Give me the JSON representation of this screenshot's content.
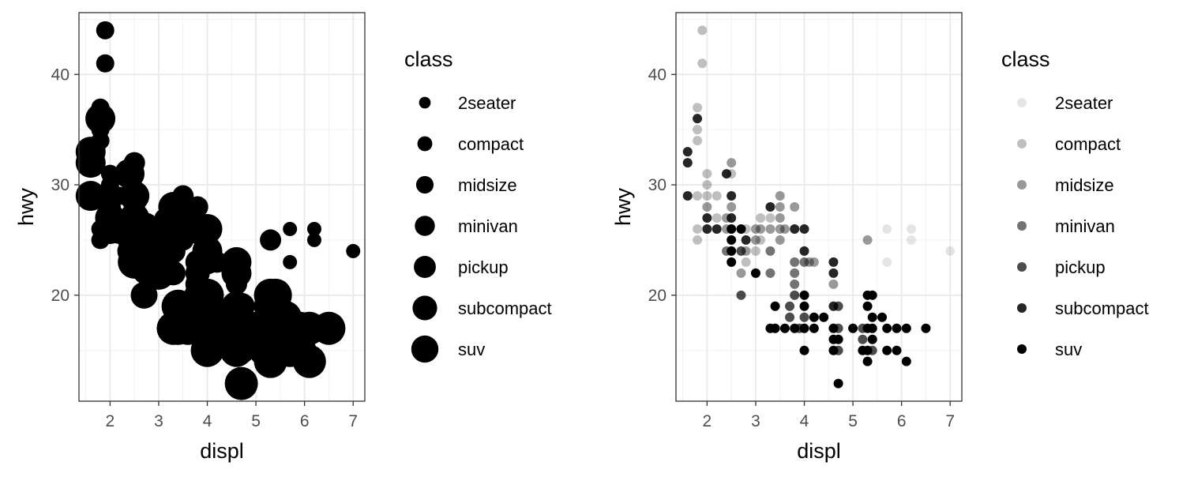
{
  "chart_data": [
    {
      "type": "scatter",
      "xlabel": "displ",
      "ylabel": "hwy",
      "xlim": [
        1.36,
        7.24
      ],
      "ylim": [
        10.4,
        45.6
      ],
      "x_ticks": [
        2,
        3,
        4,
        5,
        6,
        7
      ],
      "y_ticks": [
        20,
        30,
        40
      ],
      "grid": true,
      "legend": {
        "title": "class",
        "placement": "right",
        "encoding": "size",
        "entries": [
          "2seater",
          "compact",
          "midsize",
          "minivan",
          "pickup",
          "subcompact",
          "suv"
        ]
      },
      "points": [
        {
          "x": 1.6,
          "y": 33,
          "class": "subcompact"
        },
        {
          "x": 1.6,
          "y": 32,
          "class": "subcompact"
        },
        {
          "x": 1.6,
          "y": 29,
          "class": "subcompact"
        },
        {
          "x": 1.8,
          "y": 29,
          "class": "compact"
        },
        {
          "x": 1.8,
          "y": 26,
          "class": "compact"
        },
        {
          "x": 1.8,
          "y": 25,
          "class": "compact"
        },
        {
          "x": 1.8,
          "y": 37,
          "class": "compact"
        },
        {
          "x": 1.8,
          "y": 35,
          "class": "compact"
        },
        {
          "x": 1.8,
          "y": 36,
          "class": "subcompact"
        },
        {
          "x": 1.8,
          "y": 34,
          "class": "compact"
        },
        {
          "x": 1.9,
          "y": 44,
          "class": "compact"
        },
        {
          "x": 1.9,
          "y": 41,
          "class": "compact"
        },
        {
          "x": 2.0,
          "y": 31,
          "class": "compact"
        },
        {
          "x": 2.0,
          "y": 30,
          "class": "compact"
        },
        {
          "x": 2.0,
          "y": 28,
          "class": "midsize"
        },
        {
          "x": 2.0,
          "y": 29,
          "class": "compact"
        },
        {
          "x": 2.0,
          "y": 26,
          "class": "subcompact"
        },
        {
          "x": 2.0,
          "y": 27,
          "class": "subcompact"
        },
        {
          "x": 2.2,
          "y": 27,
          "class": "compact"
        },
        {
          "x": 2.2,
          "y": 29,
          "class": "compact"
        },
        {
          "x": 2.2,
          "y": 26,
          "class": "subcompact"
        },
        {
          "x": 2.4,
          "y": 27,
          "class": "midsize"
        },
        {
          "x": 2.4,
          "y": 24,
          "class": "minivan"
        },
        {
          "x": 2.4,
          "y": 31,
          "class": "subcompact"
        },
        {
          "x": 2.4,
          "y": 26,
          "class": "midsize"
        },
        {
          "x": 2.5,
          "y": 32,
          "class": "midsize"
        },
        {
          "x": 2.5,
          "y": 29,
          "class": "subcompact"
        },
        {
          "x": 2.5,
          "y": 27,
          "class": "subcompact"
        },
        {
          "x": 2.5,
          "y": 25,
          "class": "suv"
        },
        {
          "x": 2.5,
          "y": 24,
          "class": "suv"
        },
        {
          "x": 2.5,
          "y": 23,
          "class": "suv"
        },
        {
          "x": 2.5,
          "y": 26,
          "class": "suv"
        },
        {
          "x": 2.5,
          "y": 31,
          "class": "compact"
        },
        {
          "x": 2.5,
          "y": 28,
          "class": "midsize"
        },
        {
          "x": 2.7,
          "y": 26,
          "class": "suv"
        },
        {
          "x": 2.7,
          "y": 24,
          "class": "pickup"
        },
        {
          "x": 2.7,
          "y": 20,
          "class": "pickup"
        },
        {
          "x": 2.7,
          "y": 22,
          "class": "midsize"
        },
        {
          "x": 2.8,
          "y": 26,
          "class": "compact"
        },
        {
          "x": 2.8,
          "y": 24,
          "class": "midsize"
        },
        {
          "x": 2.8,
          "y": 25,
          "class": "subcompact"
        },
        {
          "x": 2.8,
          "y": 23,
          "class": "compact"
        },
        {
          "x": 3.0,
          "y": 26,
          "class": "midsize"
        },
        {
          "x": 3.0,
          "y": 22,
          "class": "suv"
        },
        {
          "x": 3.0,
          "y": 24,
          "class": "compact"
        },
        {
          "x": 3.0,
          "y": 25,
          "class": "midsize"
        },
        {
          "x": 3.1,
          "y": 26,
          "class": "midsize"
        },
        {
          "x": 3.1,
          "y": 27,
          "class": "compact"
        },
        {
          "x": 3.1,
          "y": 25,
          "class": "compact"
        },
        {
          "x": 3.3,
          "y": 24,
          "class": "minivan"
        },
        {
          "x": 3.3,
          "y": 22,
          "class": "minivan"
        },
        {
          "x": 3.3,
          "y": 17,
          "class": "suv"
        },
        {
          "x": 3.3,
          "y": 26,
          "class": "midsize"
        },
        {
          "x": 3.3,
          "y": 28,
          "class": "subcompact"
        },
        {
          "x": 3.3,
          "y": 27,
          "class": "compact"
        },
        {
          "x": 3.4,
          "y": 17,
          "class": "suv"
        },
        {
          "x": 3.4,
          "y": 19,
          "class": "suv"
        },
        {
          "x": 3.5,
          "y": 29,
          "class": "midsize"
        },
        {
          "x": 3.5,
          "y": 26,
          "class": "midsize"
        },
        {
          "x": 3.5,
          "y": 28,
          "class": "midsize"
        },
        {
          "x": 3.5,
          "y": 27,
          "class": "midsize"
        },
        {
          "x": 3.5,
          "y": 25,
          "class": "midsize"
        },
        {
          "x": 3.6,
          "y": 26,
          "class": "midsize"
        },
        {
          "x": 3.6,
          "y": 17,
          "class": "suv"
        },
        {
          "x": 3.7,
          "y": 18,
          "class": "pickup"
        },
        {
          "x": 3.7,
          "y": 19,
          "class": "pickup"
        },
        {
          "x": 3.8,
          "y": 26,
          "class": "subcompact"
        },
        {
          "x": 3.8,
          "y": 28,
          "class": "midsize"
        },
        {
          "x": 3.8,
          "y": 23,
          "class": "minivan"
        },
        {
          "x": 3.8,
          "y": 22,
          "class": "minivan"
        },
        {
          "x": 3.8,
          "y": 21,
          "class": "minivan"
        },
        {
          "x": 3.8,
          "y": 20,
          "class": "pickup"
        },
        {
          "x": 3.8,
          "y": 17,
          "class": "suv"
        },
        {
          "x": 3.9,
          "y": 17,
          "class": "pickup"
        },
        {
          "x": 4.0,
          "y": 26,
          "class": "subcompact"
        },
        {
          "x": 4.0,
          "y": 23,
          "class": "minivan"
        },
        {
          "x": 4.0,
          "y": 24,
          "class": "subcompact"
        },
        {
          "x": 4.0,
          "y": 20,
          "class": "suv"
        },
        {
          "x": 4.0,
          "y": 19,
          "class": "suv"
        },
        {
          "x": 4.0,
          "y": 18,
          "class": "pickup"
        },
        {
          "x": 4.0,
          "y": 17,
          "class": "suv"
        },
        {
          "x": 4.0,
          "y": 15,
          "class": "suv"
        },
        {
          "x": 4.1,
          "y": 23,
          "class": "midsize"
        },
        {
          "x": 4.2,
          "y": 23,
          "class": "midsize"
        },
        {
          "x": 4.2,
          "y": 17,
          "class": "suv"
        },
        {
          "x": 4.2,
          "y": 18,
          "class": "suv"
        },
        {
          "x": 4.4,
          "y": 18,
          "class": "suv"
        },
        {
          "x": 4.6,
          "y": 23,
          "class": "subcompact"
        },
        {
          "x": 4.6,
          "y": 22,
          "class": "subcompact"
        },
        {
          "x": 4.6,
          "y": 21,
          "class": "midsize"
        },
        {
          "x": 4.6,
          "y": 17,
          "class": "suv"
        },
        {
          "x": 4.6,
          "y": 16,
          "class": "suv"
        },
        {
          "x": 4.6,
          "y": 15,
          "class": "suv"
        },
        {
          "x": 4.6,
          "y": 19,
          "class": "subcompact"
        },
        {
          "x": 4.7,
          "y": 19,
          "class": "pickup"
        },
        {
          "x": 4.7,
          "y": 17,
          "class": "pickup"
        },
        {
          "x": 4.7,
          "y": 16,
          "class": "suv"
        },
        {
          "x": 4.7,
          "y": 15,
          "class": "pickup"
        },
        {
          "x": 4.7,
          "y": 12,
          "class": "suv"
        },
        {
          "x": 5.0,
          "y": 17,
          "class": "suv"
        },
        {
          "x": 5.2,
          "y": 17,
          "class": "pickup"
        },
        {
          "x": 5.2,
          "y": 16,
          "class": "pickup"
        },
        {
          "x": 5.2,
          "y": 15,
          "class": "suv"
        },
        {
          "x": 5.3,
          "y": 20,
          "class": "suv"
        },
        {
          "x": 5.3,
          "y": 19,
          "class": "suv"
        },
        {
          "x": 5.3,
          "y": 17,
          "class": "suv"
        },
        {
          "x": 5.3,
          "y": 15,
          "class": "suv"
        },
        {
          "x": 5.3,
          "y": 14,
          "class": "suv"
        },
        {
          "x": 5.3,
          "y": 25,
          "class": "midsize"
        },
        {
          "x": 5.4,
          "y": 20,
          "class": "suv"
        },
        {
          "x": 5.4,
          "y": 18,
          "class": "suv"
        },
        {
          "x": 5.4,
          "y": 17,
          "class": "suv"
        },
        {
          "x": 5.4,
          "y": 16,
          "class": "suv"
        },
        {
          "x": 5.4,
          "y": 15,
          "class": "pickup"
        },
        {
          "x": 5.6,
          "y": 18,
          "class": "suv"
        },
        {
          "x": 5.7,
          "y": 26,
          "class": "2seater"
        },
        {
          "x": 5.7,
          "y": 23,
          "class": "2seater"
        },
        {
          "x": 5.7,
          "y": 17,
          "class": "suv"
        },
        {
          "x": 5.7,
          "y": 15,
          "class": "suv"
        },
        {
          "x": 5.9,
          "y": 17,
          "class": "suv"
        },
        {
          "x": 5.9,
          "y": 15,
          "class": "suv"
        },
        {
          "x": 6.1,
          "y": 17,
          "class": "suv"
        },
        {
          "x": 6.1,
          "y": 14,
          "class": "suv"
        },
        {
          "x": 6.2,
          "y": 26,
          "class": "2seater"
        },
        {
          "x": 6.2,
          "y": 25,
          "class": "2seater"
        },
        {
          "x": 6.5,
          "y": 17,
          "class": "suv"
        },
        {
          "x": 7.0,
          "y": 24,
          "class": "2seater"
        }
      ]
    },
    {
      "type": "scatter",
      "xlabel": "displ",
      "ylabel": "hwy",
      "xlim": [
        1.36,
        7.24
      ],
      "ylim": [
        10.4,
        45.6
      ],
      "x_ticks": [
        2,
        3,
        4,
        5,
        6,
        7
      ],
      "y_ticks": [
        20,
        30,
        40
      ],
      "grid": true,
      "legend": {
        "title": "class",
        "placement": "right",
        "encoding": "alpha",
        "entries": [
          "2seater",
          "compact",
          "midsize",
          "minivan",
          "pickup",
          "subcompact",
          "suv"
        ]
      },
      "points_ref": "same as chart 0"
    }
  ]
}
